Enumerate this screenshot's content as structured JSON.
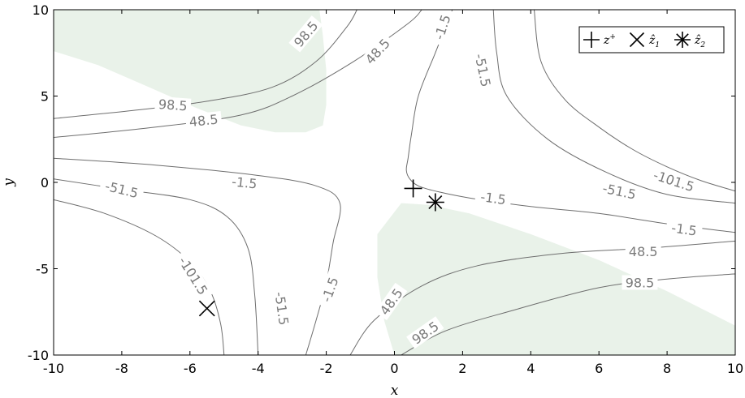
{
  "chart_data": {
    "type": "contour",
    "xlabel": "x",
    "ylabel": "y",
    "xlim": [
      -10,
      10
    ],
    "ylim": [
      -10,
      10
    ],
    "xticks": [
      -10,
      -8,
      -6,
      -4,
      -2,
      0,
      2,
      4,
      6,
      8,
      10
    ],
    "yticks": [
      -10,
      -5,
      0,
      5,
      10
    ],
    "xtick_labels": [
      "-10",
      "-8",
      "-6",
      "-4",
      "-2",
      "0",
      "2",
      "4",
      "6",
      "8",
      "10"
    ],
    "ytick_labels": [
      "-10",
      "-5",
      "0",
      "5",
      "10"
    ],
    "grid": false,
    "legend_position": "top-right",
    "colors": {
      "contour": "#6e6e6e",
      "label": "#7a7a7a",
      "shade": "#e9f2e9",
      "marker": "#000000"
    },
    "contour_levels": [
      -101.5,
      -51.5,
      -1.5,
      48.5,
      98.5
    ],
    "shaded_regions": [
      {
        "points": [
          [
            -10,
            10
          ],
          [
            -2.2,
            10
          ],
          [
            -2.1,
            8.5
          ],
          [
            -2.0,
            6.5
          ],
          [
            -2.0,
            4.5
          ],
          [
            -2.1,
            3.3
          ],
          [
            -2.6,
            2.9
          ],
          [
            -3.5,
            2.9
          ],
          [
            -4.5,
            3.3
          ],
          [
            -5.8,
            4.3
          ],
          [
            -7.3,
            5.6
          ],
          [
            -8.7,
            6.8
          ],
          [
            -10,
            7.6
          ]
        ]
      },
      {
        "points": [
          [
            -0.5,
            -3
          ],
          [
            0.2,
            -1.2
          ],
          [
            1.0,
            -1.3
          ],
          [
            2.2,
            -1.8
          ],
          [
            4.0,
            -3.0
          ],
          [
            6.0,
            -4.5
          ],
          [
            8.0,
            -6.3
          ],
          [
            10,
            -8.3
          ],
          [
            10,
            -10
          ],
          [
            0,
            -10
          ],
          [
            -0.3,
            -8
          ],
          [
            -0.5,
            -5.5
          ]
        ]
      }
    ],
    "contours": [
      {
        "level": -101.5,
        "points": [
          [
            -10,
            -1
          ],
          [
            -8.5,
            -1.8
          ],
          [
            -7,
            -3.1
          ],
          [
            -6,
            -4.6
          ],
          [
            -5.4,
            -6.3
          ],
          [
            -5.1,
            -8.2
          ],
          [
            -5,
            -10
          ]
        ]
      },
      {
        "level": -51.5,
        "points": [
          [
            -10,
            0.2
          ],
          [
            -8,
            -0.4
          ],
          [
            -6,
            -1
          ],
          [
            -4.9,
            -2
          ],
          [
            -4.3,
            -3.8
          ],
          [
            -4.1,
            -6.5
          ],
          [
            -4,
            -10
          ]
        ]
      },
      {
        "level": -1.5,
        "points": [
          [
            -10,
            1.4
          ],
          [
            -7,
            1
          ],
          [
            -4,
            0.4
          ],
          [
            -2.3,
            -0.2
          ],
          [
            -1.6,
            -1.2
          ],
          [
            -1.8,
            -3.5
          ],
          [
            -2,
            -5.8
          ],
          [
            -2.3,
            -8
          ],
          [
            -2.6,
            -10
          ]
        ]
      },
      {
        "level": 48.5,
        "points": [
          [
            -10,
            2.6
          ],
          [
            -7,
            3.2
          ],
          [
            -4.5,
            3.9
          ],
          [
            -3,
            5
          ],
          [
            -1.2,
            7
          ],
          [
            0.4,
            9.2
          ],
          [
            0.8,
            10
          ]
        ]
      },
      {
        "level": 98.5,
        "points": [
          [
            -10,
            3.7
          ],
          [
            -7.5,
            4.2
          ],
          [
            -5.5,
            4.7
          ],
          [
            -3.6,
            5.5
          ],
          [
            -2.3,
            7
          ],
          [
            -1.4,
            9
          ],
          [
            -1.1,
            10
          ]
        ]
      },
      {
        "level": -101.5,
        "points": [
          [
            4.1,
            10
          ],
          [
            4.3,
            7
          ],
          [
            5.0,
            4.8
          ],
          [
            6.0,
            3.2
          ],
          [
            7.0,
            1.9
          ],
          [
            8.0,
            0.9
          ],
          [
            9.0,
            0.1
          ],
          [
            10,
            -0.5
          ]
        ]
      },
      {
        "level": -51.5,
        "points": [
          [
            2.9,
            10
          ],
          [
            3,
            7.5
          ],
          [
            3.3,
            5
          ],
          [
            4.5,
            2.5
          ],
          [
            6.2,
            0.6
          ],
          [
            8,
            -0.7
          ],
          [
            10,
            -1.2
          ]
        ]
      },
      {
        "level": -1.5,
        "points": [
          [
            1.7,
            10
          ],
          [
            1.2,
            7.5
          ],
          [
            0.7,
            5
          ],
          [
            0.5,
            2.8
          ],
          [
            0.4,
            1.4
          ],
          [
            0.35,
            0.7
          ],
          [
            0.45,
            0.2
          ],
          [
            0.7,
            -0.2
          ],
          [
            1.2,
            -0.5
          ],
          [
            2.2,
            -0.9
          ],
          [
            4,
            -1.4
          ],
          [
            6,
            -1.8
          ],
          [
            8,
            -2.4
          ],
          [
            10,
            -2.9
          ]
        ]
      },
      {
        "level": 48.5,
        "points": [
          [
            -1.3,
            -10
          ],
          [
            -0.6,
            -8
          ],
          [
            0.8,
            -6
          ],
          [
            2.5,
            -4.8
          ],
          [
            5,
            -4.1
          ],
          [
            7.5,
            -3.8
          ],
          [
            10,
            -3.4
          ]
        ]
      },
      {
        "level": 98.5,
        "points": [
          [
            0.2,
            -10
          ],
          [
            1.5,
            -8.6
          ],
          [
            3.5,
            -7.4
          ],
          [
            6,
            -6.1
          ],
          [
            8,
            -5.6
          ],
          [
            10,
            -5.3
          ]
        ]
      }
    ],
    "contour_labels": [
      {
        "text": "98.5",
        "x": -6.5,
        "y": 4.5,
        "angle": 4
      },
      {
        "text": "48.5",
        "x": -5.6,
        "y": 3.6,
        "angle": -6
      },
      {
        "text": "-1.5",
        "x": -4.4,
        "y": 0,
        "angle": 6
      },
      {
        "text": "-51.5",
        "x": -8,
        "y": -0.4,
        "angle": 14
      },
      {
        "text": "-101.5",
        "x": -5.9,
        "y": -5.4,
        "angle": 58
      },
      {
        "text": "-51.5",
        "x": -3.3,
        "y": -7.3,
        "angle": 82
      },
      {
        "text": "-1.5",
        "x": -1.9,
        "y": -6.2,
        "angle": -70
      },
      {
        "text": "98.5",
        "x": -2.6,
        "y": 8.6,
        "angle": -50
      },
      {
        "text": "48.5",
        "x": -0.5,
        "y": 7.6,
        "angle": -48
      },
      {
        "text": "-1.5",
        "x": 1.4,
        "y": 9,
        "angle": -72
      },
      {
        "text": "-51.5",
        "x": 2.6,
        "y": 6.5,
        "angle": 78
      },
      {
        "text": "-101.5",
        "x": 8.2,
        "y": 0.1,
        "angle": 18
      },
      {
        "text": "-51.5",
        "x": 6.6,
        "y": -0.5,
        "angle": 12
      },
      {
        "text": "-1.5",
        "x": 2.9,
        "y": -0.9,
        "angle": 8
      },
      {
        "text": "-1.5",
        "x": 8.5,
        "y": -2.7,
        "angle": 8
      },
      {
        "text": "48.5",
        "x": 7.3,
        "y": -4.0,
        "angle": 0
      },
      {
        "text": "98.5",
        "x": 7.2,
        "y": -5.8,
        "angle": 0
      },
      {
        "text": "48.5",
        "x": -0.1,
        "y": -6.9,
        "angle": -55
      },
      {
        "text": "98.5",
        "x": 0.9,
        "y": -8.7,
        "angle": -35
      }
    ],
    "markers": [
      {
        "name": "z+",
        "symbol": "plus",
        "x": 0.55,
        "y": -0.35
      },
      {
        "name": "z1",
        "symbol": "cross",
        "x": -5.5,
        "y": -7.3
      },
      {
        "name": "z2",
        "symbol": "star",
        "x": 1.2,
        "y": -1.15
      }
    ]
  },
  "legend": {
    "items": [
      {
        "symbol": "plus",
        "base": "z",
        "sup": "+",
        "sub": ""
      },
      {
        "symbol": "cross",
        "base": "ẑ",
        "sup": "",
        "sub": "1"
      },
      {
        "symbol": "star",
        "base": "ẑ",
        "sup": "",
        "sub": "2"
      }
    ]
  }
}
